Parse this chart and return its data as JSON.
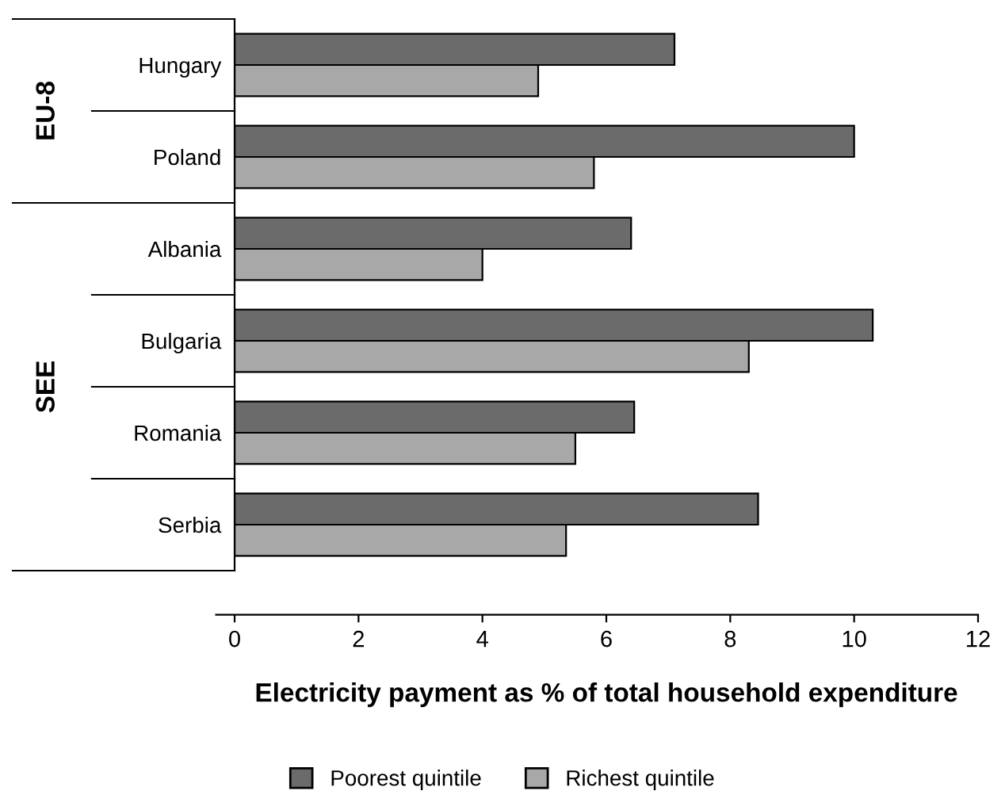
{
  "chart_data": {
    "type": "bar",
    "orientation": "horizontal",
    "categories": [
      "Hungary",
      "Poland",
      "Albania",
      "Bulgaria",
      "Romania",
      "Serbia"
    ],
    "series": [
      {
        "name": "Poorest quintile",
        "color": "#6b6b6b",
        "values": [
          7.1,
          10.0,
          6.4,
          10.3,
          6.45,
          8.45
        ]
      },
      {
        "name": "Richest quintile",
        "color": "#a8a8a8",
        "values": [
          4.9,
          5.8,
          4.0,
          8.3,
          5.5,
          5.35
        ]
      }
    ],
    "xlim": [
      0,
      12
    ],
    "xticks": [
      0,
      2,
      4,
      6,
      8,
      10,
      12
    ],
    "xlabel": "Electricity payment as % of total household expenditure",
    "annotations": [
      "EU-8",
      "SEE"
    ],
    "grid": false,
    "legend": "bottom"
  }
}
